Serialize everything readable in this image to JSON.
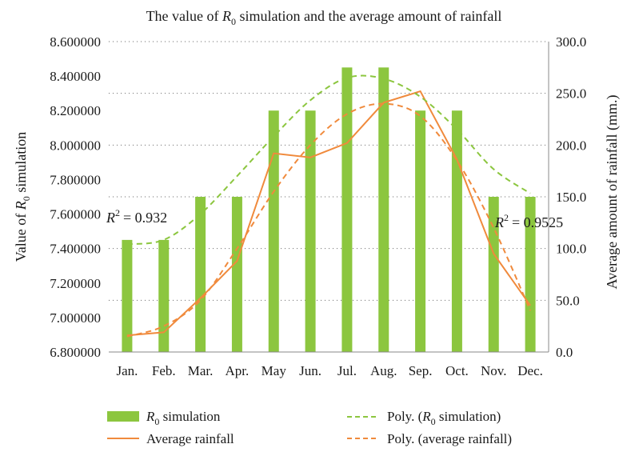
{
  "chart_data": {
    "type": "bar",
    "title": "The value of R₀ simulation and the average amount of rainfall",
    "title_main": "The value of ",
    "title_sym": "R",
    "title_sub": "0",
    "title_rest": " simulation and the average amount of rainfall",
    "categories": [
      "Jan.",
      "Feb.",
      "Mar.",
      "Apr.",
      "May",
      "Jun.",
      "Jul.",
      "Aug.",
      "Sep.",
      "Oct.",
      "Nov.",
      "Dec."
    ],
    "y_left": {
      "label": "Value of R₀ simulation",
      "label_main": "Value of ",
      "label_sym": "R",
      "label_sub": "0",
      "label_rest": " simulation",
      "ylim": [
        6.8,
        8.6
      ],
      "ticks": [
        {
          "value": 6.8,
          "label": "6.800000"
        },
        {
          "value": 7.0,
          "label": "7.000000"
        },
        {
          "value": 7.2,
          "label": "7.200000"
        },
        {
          "value": 7.4,
          "label": "7.400000"
        },
        {
          "value": 7.6,
          "label": "7.600000"
        },
        {
          "value": 7.8,
          "label": "7.800000"
        },
        {
          "value": 8.0,
          "label": "8.000000"
        },
        {
          "value": 8.2,
          "label": "8.200000"
        },
        {
          "value": 8.4,
          "label": "8.400000"
        },
        {
          "value": 8.6,
          "label": "8.600000"
        }
      ]
    },
    "y_right": {
      "label": "Average amount of rainfall (mm.)",
      "ylim": [
        0,
        300
      ],
      "ticks": [
        {
          "value": 0,
          "label": "0.0"
        },
        {
          "value": 50,
          "label": "50.0"
        },
        {
          "value": 100,
          "label": "100.0"
        },
        {
          "value": 150,
          "label": "150.0"
        },
        {
          "value": 200,
          "label": "200.0"
        },
        {
          "value": 250,
          "label": "250.0"
        },
        {
          "value": 300,
          "label": "300.0"
        }
      ]
    },
    "gridlines": "dotted at right-axis ticks",
    "series": [
      {
        "name": "R₀ simulation",
        "name_sym": "R",
        "name_sub": "0",
        "name_rest": " simulation",
        "kind": "bar",
        "axis": "left",
        "color": "#8cc63f",
        "values": [
          7.45,
          7.45,
          7.7,
          7.7,
          8.2,
          8.2,
          8.45,
          8.45,
          8.2,
          8.2,
          7.7,
          7.7
        ]
      },
      {
        "name": "Average rainfall",
        "kind": "line",
        "axis": "right",
        "color": "#f08a3c",
        "values": [
          16,
          19,
          52,
          88,
          192,
          188,
          202,
          241,
          252,
          186,
          95,
          45
        ]
      },
      {
        "name": "Poly. (R₀ simulation)",
        "name_main": "Poly. (",
        "name_sym": "R",
        "name_sub": "0",
        "name_rest": " simulation)",
        "kind": "trendline",
        "axis": "left",
        "color": "#8cc63f",
        "values": [
          7.425,
          7.45,
          7.6,
          7.82,
          8.05,
          8.26,
          8.39,
          8.385,
          8.28,
          8.09,
          7.86,
          7.72
        ]
      },
      {
        "name": "Poly. (average rainfall)",
        "kind": "trendline",
        "axis": "right",
        "color": "#f08a3c",
        "values": [
          15,
          25,
          50,
          100,
          155,
          200,
          230,
          240,
          228,
          185,
          120,
          40
        ]
      }
    ],
    "annotations": [
      {
        "text": "= 0.932",
        "sym": "R",
        "sup": "2",
        "near": "left"
      },
      {
        "text": "= 0.9525",
        "sym": "R",
        "sup": "2",
        "near": "right"
      }
    ],
    "legend": {
      "placement": "bottom",
      "entries": [
        {
          "label": "R₀ simulation"
        },
        {
          "label": "Average rainfall"
        },
        {
          "label": "Poly. (R₀ simulation)"
        },
        {
          "label": "Poly. (average rainfall)"
        }
      ]
    }
  }
}
